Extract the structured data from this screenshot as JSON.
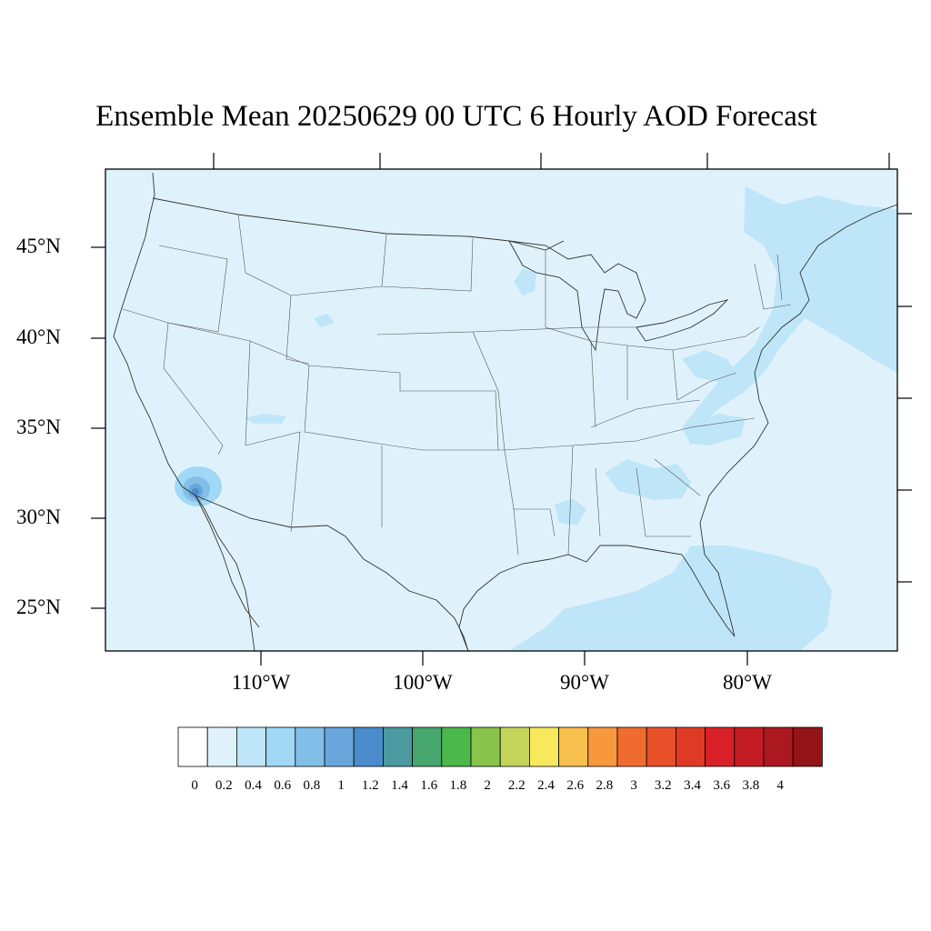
{
  "title": "Ensemble Mean 20250629 00 UTC 6 Hourly AOD Forecast",
  "map": {
    "region": "Contiguous United States",
    "variable": "AOD",
    "lat_labels": [
      "45°N",
      "40°N",
      "35°N",
      "30°N",
      "25°N"
    ],
    "lon_labels": [
      "110°W",
      "100°W",
      "90°W",
      "80°W"
    ]
  },
  "colorbar": {
    "labels": [
      "0",
      "0.2",
      "0.4",
      "0.6",
      "0.8",
      "1",
      "1.2",
      "1.4",
      "1.6",
      "1.8",
      "2",
      "2.2",
      "2.4",
      "2.6",
      "2.8",
      "3",
      "3.2",
      "3.4",
      "3.6",
      "3.8",
      "4"
    ],
    "colors": [
      "#ffffff",
      "#dff2fc",
      "#bfe6f8",
      "#a0d8f5",
      "#82bfe8",
      "#68a6dc",
      "#4a8ccc",
      "#4a9aa0",
      "#46a66e",
      "#4ab84a",
      "#88c44c",
      "#c4d45a",
      "#f8e85c",
      "#f8c04c",
      "#f8983c",
      "#f06c2e",
      "#e8502a",
      "#e03a26",
      "#d82028",
      "#c41c24",
      "#ac1820",
      "#941418"
    ]
  },
  "colors": {
    "background_field": "#dff2fc",
    "enhanced_field": "#bfe6f8",
    "plume_core": "#4a8ccc",
    "border_line": "#333333"
  }
}
